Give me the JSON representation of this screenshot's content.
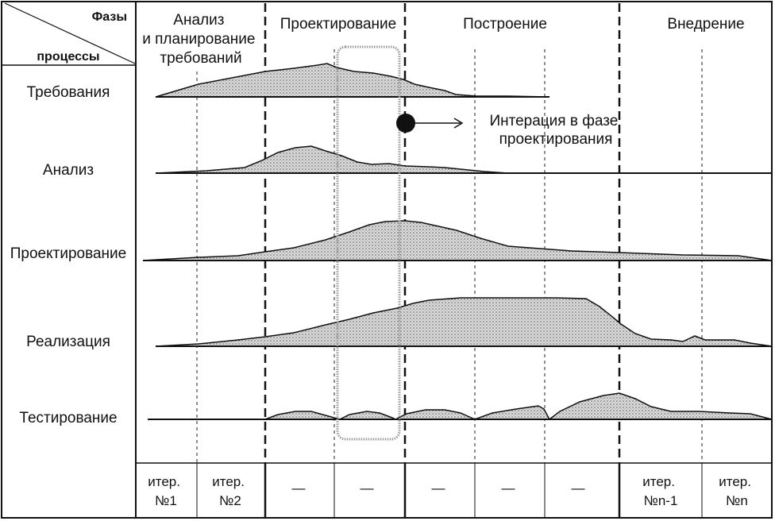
{
  "header": {
    "phases_caption": "Фазы",
    "processes_caption": "процессы"
  },
  "phases": [
    {
      "lines": [
        "Анализ",
        "и планирование",
        "требований"
      ]
    },
    {
      "lines": [
        "Проектирование"
      ]
    },
    {
      "lines": [
        "Построение"
      ]
    },
    {
      "lines": [
        "Внедрение"
      ]
    }
  ],
  "processes": [
    {
      "label": "Требования"
    },
    {
      "label": "Анализ"
    },
    {
      "label": "Проектирование"
    },
    {
      "label": "Реализация"
    },
    {
      "label": "Тестирование"
    }
  ],
  "annotation": {
    "lines": [
      "Интерация в фазе",
      "проектирования"
    ]
  },
  "iterations": [
    {
      "lines": [
        "итер.",
        "№1"
      ]
    },
    {
      "lines": [
        "итер.",
        "№2"
      ]
    },
    {
      "lines": [
        "—"
      ]
    },
    {
      "lines": [
        "—"
      ]
    },
    {
      "lines": [
        "—"
      ]
    },
    {
      "lines": [
        "—"
      ]
    },
    {
      "lines": [
        "—"
      ]
    },
    {
      "lines": [
        "итер.",
        "№n-1"
      ]
    },
    {
      "lines": [
        "итер.",
        "№n"
      ]
    }
  ],
  "colors": {
    "ink": "#111111",
    "fill": "#cfcfcf",
    "highlight_frame": "#9a9a9a"
  }
}
